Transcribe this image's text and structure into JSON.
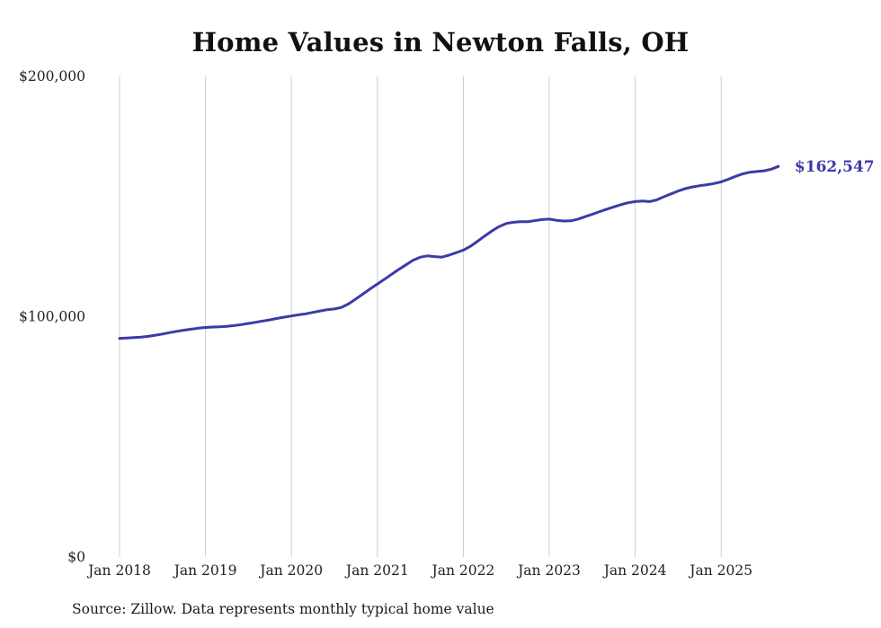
{
  "title": "Home Values in Newton Falls, OH",
  "source": "Source: Zillow. Data represents monthly typical home value",
  "end_label": "$162,547",
  "line_color": "#3b3ba6",
  "gridline_color": "#cccccc",
  "axis_text_color": "#222222",
  "chart_data": {
    "type": "line",
    "title": "Home Values in Newton Falls, OH",
    "series_name": "Monthly typical home value",
    "x_start": "2018-01",
    "x_end": "2025-09",
    "latest_value": 162547,
    "ylim": [
      0,
      200000
    ],
    "grid": "vertical-only",
    "legend_position": "none",
    "y_ticks": [
      {
        "value": 0,
        "label": "$0"
      },
      {
        "value": 100000,
        "label": "$100,000"
      },
      {
        "value": 200000,
        "label": "$200,000"
      }
    ],
    "x_ticks": [
      {
        "year_index": 0,
        "label": "Jan 2018"
      },
      {
        "year_index": 1,
        "label": "Jan 2019"
      },
      {
        "year_index": 2,
        "label": "Jan 2020"
      },
      {
        "year_index": 3,
        "label": "Jan 2021"
      },
      {
        "year_index": 4,
        "label": "Jan 2022"
      },
      {
        "year_index": 5,
        "label": "Jan 2023"
      },
      {
        "year_index": 6,
        "label": "Jan 2024"
      },
      {
        "year_index": 7,
        "label": "Jan 2025"
      }
    ],
    "values": [
      91000,
      91100,
      91300,
      91500,
      91800,
      92300,
      92800,
      93400,
      93900,
      94400,
      94800,
      95200,
      95500,
      95700,
      95800,
      96000,
      96300,
      96700,
      97200,
      97700,
      98200,
      98700,
      99300,
      99800,
      100300,
      100800,
      101200,
      101800,
      102400,
      102900,
      103200,
      103900,
      105400,
      107400,
      109500,
      111600,
      113600,
      115600,
      117700,
      119700,
      121600,
      123500,
      124800,
      125300,
      125000,
      124800,
      125600,
      126600,
      127700,
      129300,
      131400,
      133600,
      135700,
      137500,
      138800,
      139300,
      139500,
      139500,
      140000,
      140400,
      140600,
      140100,
      139800,
      139900,
      140600,
      141600,
      142600,
      143700,
      144700,
      145700,
      146600,
      147400,
      147900,
      148100,
      147900,
      148600,
      149900,
      151100,
      152300,
      153300,
      154000,
      154500,
      154900,
      155400,
      156100,
      157200,
      158400,
      159400,
      160100,
      160400,
      160700,
      161400,
      162547
    ]
  }
}
